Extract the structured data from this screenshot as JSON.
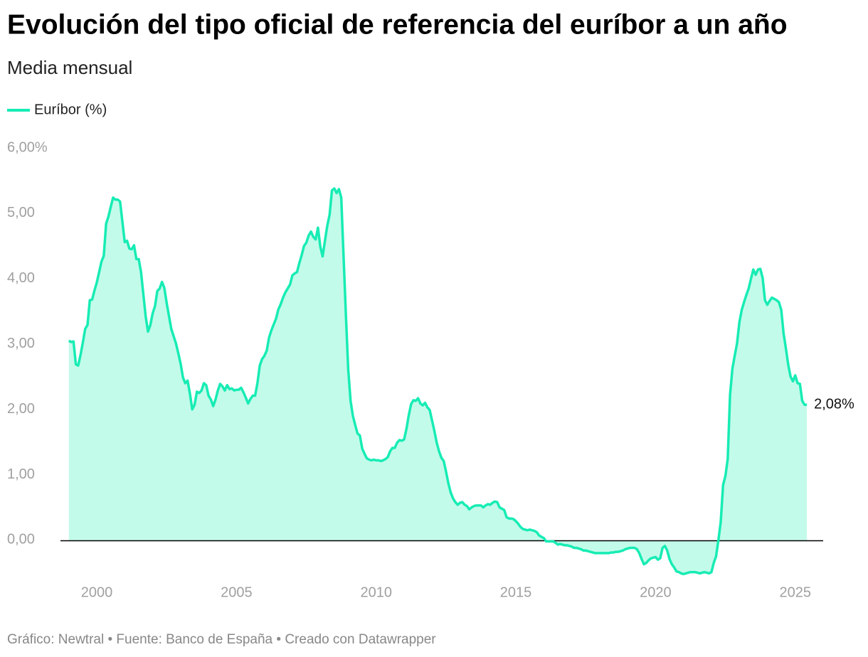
{
  "chart_data": {
    "type": "area",
    "title": "Evolución del tipo oficial de referencia del euríbor a un año",
    "subtitle": "Media mensual",
    "source": "Gráfico: Newtral • Fuente: Banco de España • Creado con Datawrapper",
    "x": [
      "1999-01",
      "1999-02",
      "1999-03",
      "1999-04",
      "1999-05",
      "1999-06",
      "1999-07",
      "1999-08",
      "1999-09",
      "1999-10",
      "1999-11",
      "1999-12",
      "2000-01",
      "2000-02",
      "2000-03",
      "2000-04",
      "2000-05",
      "2000-06",
      "2000-07",
      "2000-08",
      "2000-09",
      "2000-10",
      "2000-11",
      "2000-12",
      "2001-01",
      "2001-02",
      "2001-03",
      "2001-04",
      "2001-05",
      "2001-06",
      "2001-07",
      "2001-08",
      "2001-09",
      "2001-10",
      "2001-11",
      "2001-12",
      "2002-01",
      "2002-02",
      "2002-03",
      "2002-04",
      "2002-05",
      "2002-06",
      "2002-07",
      "2002-08",
      "2002-09",
      "2002-10",
      "2002-11",
      "2002-12",
      "2003-01",
      "2003-02",
      "2003-03",
      "2003-04",
      "2003-05",
      "2003-06",
      "2003-07",
      "2003-08",
      "2003-09",
      "2003-10",
      "2003-11",
      "2003-12",
      "2004-01",
      "2004-02",
      "2004-03",
      "2004-04",
      "2004-05",
      "2004-06",
      "2004-07",
      "2004-08",
      "2004-09",
      "2004-10",
      "2004-11",
      "2004-12",
      "2005-01",
      "2005-02",
      "2005-03",
      "2005-04",
      "2005-05",
      "2005-06",
      "2005-07",
      "2005-08",
      "2005-09",
      "2005-10",
      "2005-11",
      "2005-12",
      "2006-01",
      "2006-02",
      "2006-03",
      "2006-04",
      "2006-05",
      "2006-06",
      "2006-07",
      "2006-08",
      "2006-09",
      "2006-10",
      "2006-11",
      "2006-12",
      "2007-01",
      "2007-02",
      "2007-03",
      "2007-04",
      "2007-05",
      "2007-06",
      "2007-07",
      "2007-08",
      "2007-09",
      "2007-10",
      "2007-11",
      "2007-12",
      "2008-01",
      "2008-02",
      "2008-03",
      "2008-04",
      "2008-05",
      "2008-06",
      "2008-07",
      "2008-08",
      "2008-09",
      "2008-10",
      "2008-11",
      "2008-12",
      "2009-01",
      "2009-02",
      "2009-03",
      "2009-04",
      "2009-05",
      "2009-06",
      "2009-07",
      "2009-08",
      "2009-09",
      "2009-10",
      "2009-11",
      "2009-12",
      "2010-01",
      "2010-02",
      "2010-03",
      "2010-04",
      "2010-05",
      "2010-06",
      "2010-07",
      "2010-08",
      "2010-09",
      "2010-10",
      "2010-11",
      "2010-12",
      "2011-01",
      "2011-02",
      "2011-03",
      "2011-04",
      "2011-05",
      "2011-06",
      "2011-07",
      "2011-08",
      "2011-09",
      "2011-10",
      "2011-11",
      "2011-12",
      "2012-01",
      "2012-02",
      "2012-03",
      "2012-04",
      "2012-05",
      "2012-06",
      "2012-07",
      "2012-08",
      "2012-09",
      "2012-10",
      "2012-11",
      "2012-12",
      "2013-01",
      "2013-02",
      "2013-03",
      "2013-04",
      "2013-05",
      "2013-06",
      "2013-07",
      "2013-08",
      "2013-09",
      "2013-10",
      "2013-11",
      "2013-12",
      "2014-01",
      "2014-02",
      "2014-03",
      "2014-04",
      "2014-05",
      "2014-06",
      "2014-07",
      "2014-08",
      "2014-09",
      "2014-10",
      "2014-11",
      "2014-12",
      "2015-01",
      "2015-02",
      "2015-03",
      "2015-04",
      "2015-05",
      "2015-06",
      "2015-07",
      "2015-08",
      "2015-09",
      "2015-10",
      "2015-11",
      "2015-12",
      "2016-01",
      "2016-02",
      "2016-03",
      "2016-04",
      "2016-05",
      "2016-06",
      "2016-07",
      "2016-08",
      "2016-09",
      "2016-10",
      "2016-11",
      "2016-12",
      "2017-01",
      "2017-02",
      "2017-03",
      "2017-04",
      "2017-05",
      "2017-06",
      "2017-07",
      "2017-08",
      "2017-09",
      "2017-10",
      "2017-11",
      "2017-12",
      "2018-01",
      "2018-02",
      "2018-03",
      "2018-04",
      "2018-05",
      "2018-06",
      "2018-07",
      "2018-08",
      "2018-09",
      "2018-10",
      "2018-11",
      "2018-12",
      "2019-01",
      "2019-02",
      "2019-03",
      "2019-04",
      "2019-05",
      "2019-06",
      "2019-07",
      "2019-08",
      "2019-09",
      "2019-10",
      "2019-11",
      "2019-12",
      "2020-01",
      "2020-02",
      "2020-03",
      "2020-04",
      "2020-05",
      "2020-06",
      "2020-07",
      "2020-08",
      "2020-09",
      "2020-10",
      "2020-11",
      "2020-12",
      "2021-01",
      "2021-02",
      "2021-03",
      "2021-04",
      "2021-05",
      "2021-06",
      "2021-07",
      "2021-08",
      "2021-09",
      "2021-10",
      "2021-11",
      "2021-12",
      "2022-01",
      "2022-02",
      "2022-03",
      "2022-04",
      "2022-05",
      "2022-06",
      "2022-07",
      "2022-08",
      "2022-09",
      "2022-10",
      "2022-11",
      "2022-12",
      "2023-01",
      "2023-02",
      "2023-03",
      "2023-04",
      "2023-05",
      "2023-06",
      "2023-07",
      "2023-08",
      "2023-09",
      "2023-10",
      "2023-11",
      "2023-12",
      "2024-01",
      "2024-02",
      "2024-03",
      "2024-04",
      "2024-05",
      "2024-06",
      "2024-07",
      "2024-08",
      "2024-09",
      "2024-10",
      "2024-11",
      "2024-12",
      "2025-01",
      "2025-02",
      "2025-03",
      "2025-04",
      "2025-05",
      "2025-06"
    ],
    "series": [
      {
        "name": "Euríbor (%)",
        "color": "#17ecb4",
        "fill": "#c3fbea",
        "values": [
          3.06,
          3.04,
          3.05,
          2.7,
          2.68,
          2.84,
          3.03,
          3.24,
          3.3,
          3.68,
          3.69,
          3.83,
          3.95,
          4.11,
          4.27,
          4.36,
          4.85,
          4.96,
          5.11,
          5.25,
          5.22,
          5.22,
          5.19,
          4.88,
          4.57,
          4.59,
          4.47,
          4.46,
          4.52,
          4.31,
          4.31,
          4.11,
          3.77,
          3.43,
          3.2,
          3.3,
          3.48,
          3.59,
          3.82,
          3.86,
          3.96,
          3.87,
          3.64,
          3.44,
          3.24,
          3.13,
          3.02,
          2.87,
          2.71,
          2.5,
          2.41,
          2.45,
          2.25,
          2.01,
          2.08,
          2.28,
          2.26,
          2.3,
          2.41,
          2.38,
          2.22,
          2.16,
          2.06,
          2.16,
          2.3,
          2.4,
          2.36,
          2.3,
          2.38,
          2.32,
          2.33,
          2.3,
          2.31,
          2.31,
          2.34,
          2.27,
          2.19,
          2.1,
          2.17,
          2.22,
          2.22,
          2.41,
          2.68,
          2.78,
          2.83,
          2.91,
          3.11,
          3.22,
          3.31,
          3.4,
          3.54,
          3.62,
          3.72,
          3.8,
          3.86,
          3.92,
          4.06,
          4.09,
          4.11,
          4.25,
          4.37,
          4.51,
          4.56,
          4.67,
          4.73,
          4.65,
          4.61,
          4.79,
          4.5,
          4.35,
          4.59,
          4.82,
          4.99,
          5.36,
          5.39,
          5.32,
          5.38,
          5.25,
          4.35,
          3.45,
          2.62,
          2.14,
          1.91,
          1.77,
          1.64,
          1.61,
          1.41,
          1.33,
          1.26,
          1.24,
          1.23,
          1.24,
          1.23,
          1.23,
          1.22,
          1.23,
          1.25,
          1.28,
          1.37,
          1.42,
          1.42,
          1.5,
          1.54,
          1.53,
          1.55,
          1.71,
          1.92,
          2.09,
          2.15,
          2.14,
          2.18,
          2.1,
          2.07,
          2.11,
          2.04,
          2.0,
          1.84,
          1.68,
          1.5,
          1.37,
          1.27,
          1.22,
          1.06,
          0.88,
          0.74,
          0.65,
          0.59,
          0.55,
          0.58,
          0.59,
          0.55,
          0.53,
          0.48,
          0.51,
          0.53,
          0.54,
          0.54,
          0.54,
          0.51,
          0.54,
          0.56,
          0.55,
          0.58,
          0.6,
          0.59,
          0.51,
          0.49,
          0.47,
          0.36,
          0.34,
          0.34,
          0.33,
          0.3,
          0.26,
          0.21,
          0.18,
          0.17,
          0.16,
          0.17,
          0.16,
          0.15,
          0.13,
          0.08,
          0.06,
          0.04,
          -0.01,
          -0.01,
          -0.01,
          -0.01,
          -0.03,
          -0.06,
          -0.05,
          -0.06,
          -0.07,
          -0.07,
          -0.08,
          -0.09,
          -0.11,
          -0.11,
          -0.12,
          -0.13,
          -0.15,
          -0.15,
          -0.16,
          -0.17,
          -0.18,
          -0.19,
          -0.19,
          -0.19,
          -0.19,
          -0.19,
          -0.19,
          -0.19,
          -0.18,
          -0.18,
          -0.17,
          -0.17,
          -0.16,
          -0.15,
          -0.13,
          -0.12,
          -0.11,
          -0.11,
          -0.11,
          -0.13,
          -0.19,
          -0.28,
          -0.36,
          -0.34,
          -0.3,
          -0.27,
          -0.26,
          -0.25,
          -0.29,
          -0.27,
          -0.11,
          -0.08,
          -0.15,
          -0.28,
          -0.36,
          -0.41,
          -0.47,
          -0.48,
          -0.5,
          -0.51,
          -0.5,
          -0.49,
          -0.48,
          -0.48,
          -0.48,
          -0.49,
          -0.5,
          -0.49,
          -0.48,
          -0.49,
          -0.5,
          -0.48,
          -0.34,
          -0.24,
          0.01,
          0.29,
          0.85,
          0.99,
          1.25,
          2.23,
          2.63,
          2.83,
          3.02,
          3.34,
          3.53,
          3.65,
          3.76,
          3.86,
          4.01,
          4.15,
          4.07,
          4.15,
          4.16,
          4.02,
          3.68,
          3.61,
          3.67,
          3.72,
          3.7,
          3.68,
          3.65,
          3.53,
          3.17,
          2.94,
          2.69,
          2.51,
          2.44,
          2.53,
          2.41,
          2.4,
          2.14,
          2.08,
          2.08
        ]
      }
    ],
    "annotations": [
      {
        "label": "2,08%",
        "x": "2025-06",
        "value": 2.08
      }
    ],
    "xlim": [
      1998.7,
      2026.0
    ],
    "xticks": [
      2000,
      2005,
      2010,
      2015,
      2020,
      2025
    ],
    "ylim": [
      -0.55,
      6
    ],
    "yticks": [
      {
        "value": 0,
        "label": "0,00"
      },
      {
        "value": 1,
        "label": "1,00"
      },
      {
        "value": 2,
        "label": "2,00"
      },
      {
        "value": 3,
        "label": "3,00"
      },
      {
        "value": 4,
        "label": "4,00"
      },
      {
        "value": 5,
        "label": "5,00"
      },
      {
        "value": 6,
        "label": "6,00%"
      }
    ],
    "grid": false,
    "legend": "top-left"
  }
}
